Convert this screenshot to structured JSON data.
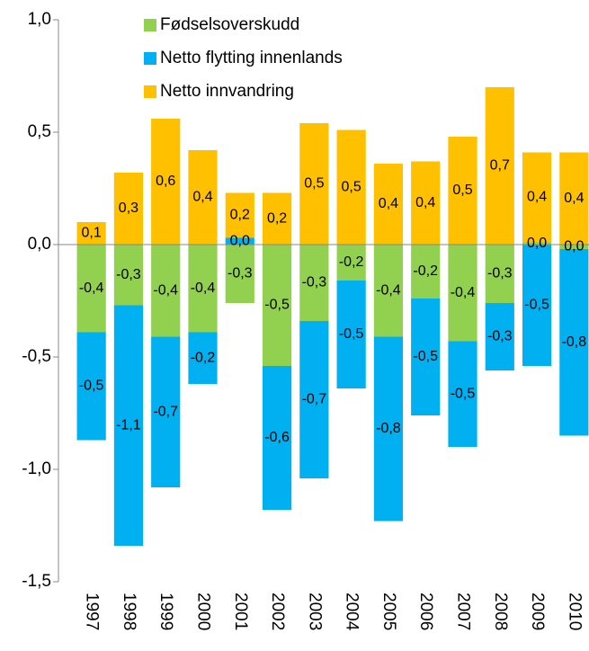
{
  "chart_data": {
    "type": "stacked_bar",
    "categories": [
      "1997",
      "1998",
      "1999",
      "2000",
      "2001",
      "2002",
      "2003",
      "2004",
      "2005",
      "2006",
      "2007",
      "2008",
      "2009",
      "2010"
    ],
    "series": [
      {
        "name": "Fødselsoverskudd",
        "color": "#92d050",
        "values": [
          -0.39,
          -0.27,
          -0.41,
          -0.39,
          -0.26,
          -0.54,
          -0.34,
          -0.16,
          -0.41,
          -0.24,
          -0.43,
          -0.26,
          0.01,
          -0.02
        ],
        "value_labels": [
          "-0,4",
          "-0,3",
          "-0,4",
          "-0,4",
          "-0,3",
          "-0,5",
          "-0,3",
          "-0,2",
          "-0,4",
          "-0,2",
          "-0,4",
          "-0,3",
          "0,0",
          "0,0"
        ]
      },
      {
        "name": "Netto flytting innenlands",
        "color": "#00b0f0",
        "values": [
          -0.48,
          -1.07,
          -0.67,
          -0.23,
          0.03,
          -0.64,
          -0.7,
          -0.48,
          -0.82,
          -0.52,
          -0.47,
          -0.3,
          -0.54,
          -0.83
        ],
        "value_labels": [
          "-0,5",
          "-1,1",
          "-0,7",
          "-0,2",
          "0,0",
          "-0,6",
          "-0,7",
          "-0,5",
          "-0,8",
          "-0,5",
          "-0,5",
          "-0,3",
          "-0,5",
          "-0,8"
        ]
      },
      {
        "name": "Netto innvandring",
        "color": "#ffc000",
        "values": [
          0.1,
          0.32,
          0.56,
          0.42,
          0.2,
          0.23,
          0.54,
          0.51,
          0.36,
          0.37,
          0.48,
          0.7,
          0.4,
          0.41
        ],
        "value_labels": [
          "0,1",
          "0,3",
          "0,6",
          "0,4",
          "0,2",
          "0,2",
          "0,5",
          "0,5",
          "0,4",
          "0,4",
          "0,5",
          "0,7",
          "0,4",
          "0,4"
        ]
      }
    ],
    "ylim": [
      -1.5,
      1.0
    ],
    "yticks": [
      {
        "value": -1.5,
        "label": "-1,5"
      },
      {
        "value": -1.0,
        "label": "-1,0"
      },
      {
        "value": -0.5,
        "label": "-0,5"
      },
      {
        "value": 0,
        "label": "0,0"
      },
      {
        "value": 0.5,
        "label": "0,5"
      },
      {
        "value": 1.0,
        "label": "1,0"
      }
    ],
    "legend": "upper left"
  }
}
